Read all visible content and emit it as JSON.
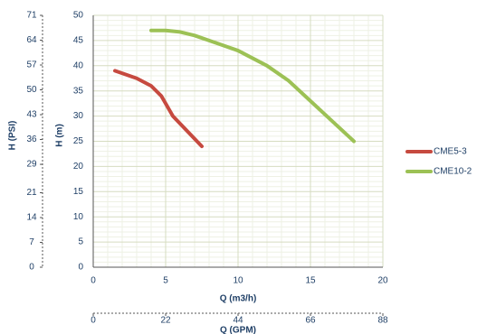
{
  "chart_data": {
    "type": "line",
    "xlabel": "Q (m3/h)",
    "ylabel": "H (m)",
    "x2label": "Q (GPM)",
    "y2label": "H (PSI)",
    "xlim": [
      0,
      20
    ],
    "xticks": [
      0,
      5,
      10,
      15,
      20
    ],
    "ylim": [
      0,
      50
    ],
    "yticks": [
      0,
      5,
      10,
      15,
      20,
      25,
      30,
      35,
      40,
      45,
      50
    ],
    "x2lim": [
      0,
      88
    ],
    "x2ticks": [
      0,
      22,
      44,
      66,
      88
    ],
    "y2lim": [
      0,
      71
    ],
    "y2ticks": [
      0,
      7,
      14,
      21,
      29,
      36,
      43,
      50,
      57,
      64,
      71
    ],
    "grid": true,
    "minor_grid": true,
    "legend": "right",
    "series": [
      {
        "name": "CME5-3",
        "color": "#c64a3f",
        "x": [
          1.5,
          3,
          4,
          4.7,
          5.5,
          6.5,
          7.5
        ],
        "values": [
          39,
          37.5,
          36,
          34,
          30,
          27,
          24
        ]
      },
      {
        "name": "CME10-2",
        "color": "#9cc155",
        "x": [
          4,
          5,
          6,
          7,
          8,
          10,
          12,
          13.5,
          15,
          16.5,
          18
        ],
        "values": [
          47,
          47,
          46.7,
          46,
          45,
          43,
          40,
          37,
          33,
          29,
          25
        ]
      }
    ]
  }
}
